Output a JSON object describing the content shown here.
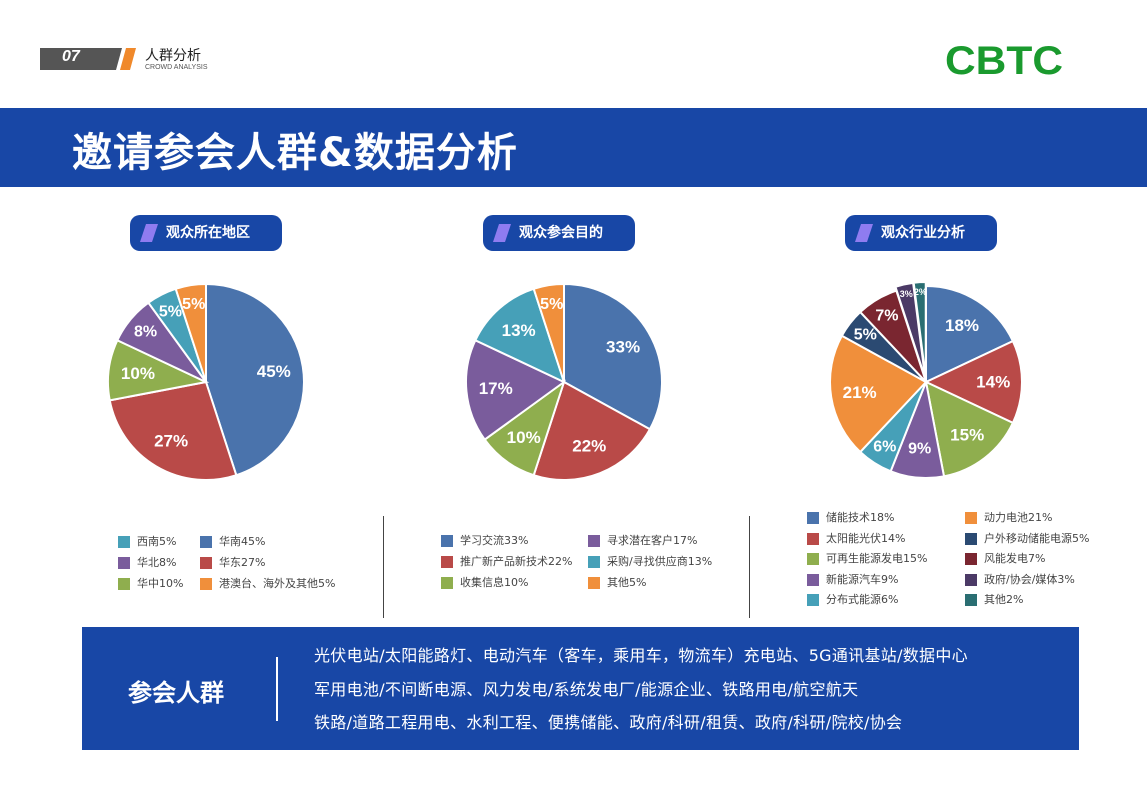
{
  "header": {
    "page_number": "07",
    "section_title": "人群分析",
    "section_subtitle": "CROWD ANALYSIS",
    "logo_text": "CBTC"
  },
  "banner": {
    "title": "邀请参会人群&数据分析"
  },
  "colors": {
    "brand_blue": "#1847a6",
    "accent_orange": "#f0892b",
    "logo_green": "#1a9a2e"
  },
  "chart_data": [
    {
      "type": "pie",
      "title": "观众所在地区",
      "series": [
        {
          "name": "华南",
          "label": "华南45%",
          "value": 45,
          "color": "#4a73ac"
        },
        {
          "name": "华东",
          "label": "华东27%",
          "value": 27,
          "color": "#b94a48"
        },
        {
          "name": "华中",
          "label": "华中10%",
          "value": 10,
          "color": "#8fae4e"
        },
        {
          "name": "华北",
          "label": "华北8%",
          "value": 8,
          "color": "#7a5c9c"
        },
        {
          "name": "西南",
          "label": "西南5%",
          "value": 5,
          "color": "#46a0b8"
        },
        {
          "name": "港澳台、海外及其他",
          "label": "港澳台、海外及其他5%",
          "value": 5,
          "color": "#f08f3b"
        }
      ],
      "legend_order": [
        4,
        0,
        3,
        1,
        2,
        5
      ]
    },
    {
      "type": "pie",
      "title": "观众参会目的",
      "series": [
        {
          "name": "学习交流",
          "label": "学习交流33%",
          "value": 33,
          "color": "#4a73ac"
        },
        {
          "name": "推广新产品新技术",
          "label": "推广新产品新技术22%",
          "value": 22,
          "color": "#b94a48"
        },
        {
          "name": "收集信息",
          "label": "收集信息10%",
          "value": 10,
          "color": "#8fae4e"
        },
        {
          "name": "寻求潜在客户",
          "label": "寻求潜在客户17%",
          "value": 17,
          "color": "#7a5c9c"
        },
        {
          "name": "采购/寻找供应商",
          "label": "采购/寻找供应商13%",
          "value": 13,
          "color": "#46a0b8"
        },
        {
          "name": "其他",
          "label": "其他5%",
          "value": 5,
          "color": "#f08f3b"
        }
      ],
      "legend_order": [
        0,
        3,
        1,
        4,
        2,
        5
      ]
    },
    {
      "type": "pie",
      "title": "观众行业分析",
      "series": [
        {
          "name": "储能技术",
          "label": "储能技术18%",
          "value": 18,
          "color": "#4a73ac"
        },
        {
          "name": "太阳能光伏",
          "label": "太阳能光伏14%",
          "value": 14,
          "color": "#b94a48"
        },
        {
          "name": "可再生能源发电",
          "label": "可再生能源发电15%",
          "value": 15,
          "color": "#8fae4e"
        },
        {
          "name": "新能源汽车",
          "label": "新能源汽车9%",
          "value": 9,
          "color": "#7a5c9c"
        },
        {
          "name": "分布式能源",
          "label": "分布式能源6%",
          "value": 6,
          "color": "#46a0b8"
        },
        {
          "name": "动力电池",
          "label": "动力电池21%",
          "value": 21,
          "color": "#f08f3b"
        },
        {
          "name": "户外移动储能电源",
          "label": "户外移动储能电源5%",
          "value": 5,
          "color": "#2b4a72"
        },
        {
          "name": "风能发电",
          "label": "风能发电7%",
          "value": 7,
          "color": "#7a2630"
        },
        {
          "name": "政府/协会/媒体",
          "label": "政府/协会/媒体3%",
          "value": 3,
          "color": "#4b3a66"
        },
        {
          "name": "其他",
          "label": "其他2%",
          "value": 2,
          "color": "#2a6e72"
        }
      ],
      "legend_order": [
        0,
        5,
        1,
        6,
        2,
        7,
        3,
        8,
        4,
        9
      ]
    }
  ],
  "footer": {
    "title": "参会人群",
    "lines": [
      "光伏电站/太阳能路灯、电动汽车（客车，乘用车，物流车）充电站、5G通讯基站/数据中心",
      "军用电池/不间断电源、风力发电/系统发电厂/能源企业、铁路用电/航空航天",
      "铁路/道路工程用电、水利工程、便携储能、政府/科研/租赁、政府/科研/院校/协会"
    ]
  }
}
